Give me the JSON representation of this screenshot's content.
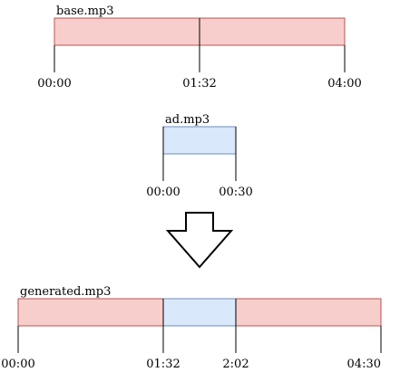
{
  "colors": {
    "base": "#f8cecc",
    "base_stroke": "#b85450",
    "ad": "#dae8fc",
    "ad_stroke": "#6c8ebf",
    "line": "#000000"
  },
  "base": {
    "title": "base.mp3",
    "ticks": [
      "00:00",
      "01:32",
      "04:00"
    ]
  },
  "ad": {
    "title": "ad.mp3",
    "ticks": [
      "00:00",
      "00:30"
    ]
  },
  "generated": {
    "title": "generated.mp3",
    "ticks": [
      "00:00",
      "01:32",
      "2:02",
      "04:30"
    ]
  },
  "arrow": {
    "icon": "down-arrow-icon"
  }
}
